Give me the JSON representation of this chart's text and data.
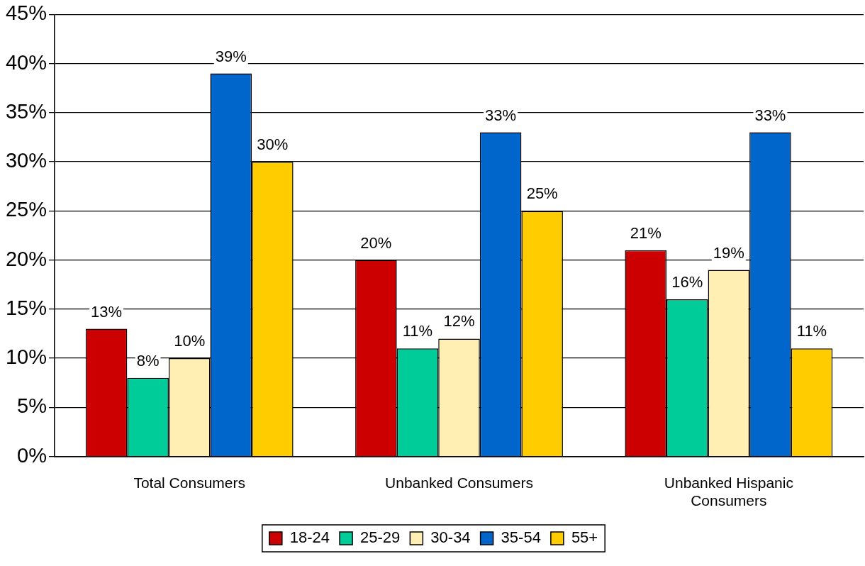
{
  "chart_data": {
    "type": "bar",
    "categories": [
      "Total Consumers",
      "Unbanked Consumers",
      "Unbanked Hispanic Consumers"
    ],
    "series": [
      {
        "name": "18-24",
        "color": "#cc0000",
        "values": [
          13,
          20,
          21
        ],
        "value_labels": [
          "13%",
          "20%",
          "21%"
        ]
      },
      {
        "name": "25-29",
        "color": "#00cc99",
        "values": [
          8,
          11,
          16
        ],
        "value_labels": [
          "8%",
          "11%",
          "16%"
        ]
      },
      {
        "name": "30-34",
        "color": "#ffefb3",
        "values": [
          10,
          12,
          19
        ],
        "value_labels": [
          "10%",
          "12%",
          "19%"
        ]
      },
      {
        "name": "35-54",
        "color": "#0066cc",
        "values": [
          39,
          33,
          33
        ],
        "value_labels": [
          "39%",
          "33%",
          "33%"
        ]
      },
      {
        "name": "55+",
        "color": "#ffcc00",
        "values": [
          30,
          25,
          11
        ],
        "value_labels": [
          "30%",
          "25%",
          "11%"
        ]
      }
    ],
    "ylim": [
      0,
      45
    ],
    "yticks": [
      {
        "value": 0,
        "label": "0%"
      },
      {
        "value": 5,
        "label": "5%"
      },
      {
        "value": 10,
        "label": "10%"
      },
      {
        "value": 15,
        "label": "15%"
      },
      {
        "value": 20,
        "label": "20%"
      },
      {
        "value": 25,
        "label": "25%"
      },
      {
        "value": 30,
        "label": "30%"
      },
      {
        "value": 35,
        "label": "35%"
      },
      {
        "value": 40,
        "label": "40%"
      },
      {
        "value": 45,
        "label": "45%"
      }
    ],
    "grid": "y",
    "legend": "bottom"
  }
}
